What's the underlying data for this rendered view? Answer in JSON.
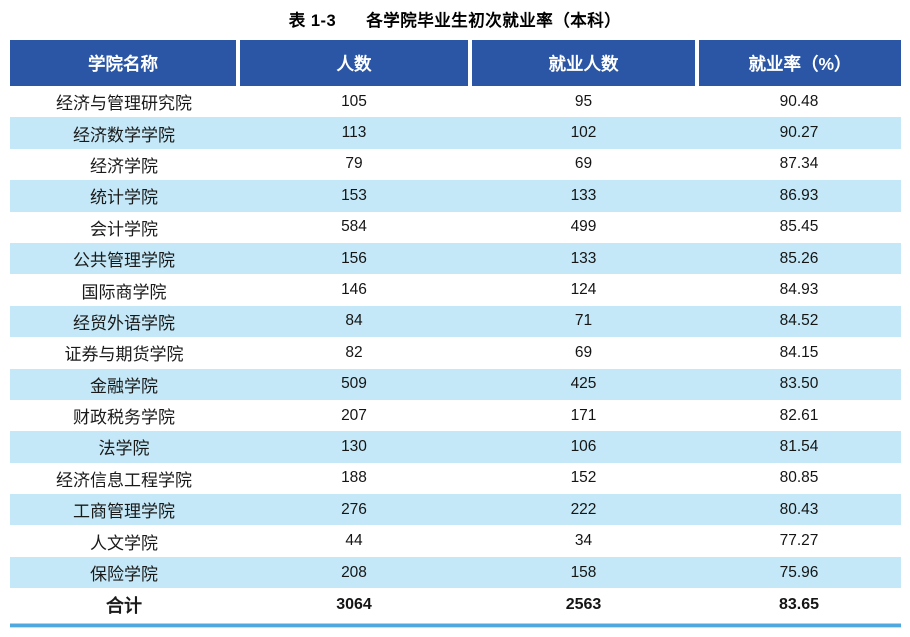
{
  "title": {
    "label": "表 1-3",
    "text": "各学院毕业生初次就业率（本科）"
  },
  "colors": {
    "header_bg": "#2A56A5",
    "stripe": "#C4E8F7",
    "bottom_rule": "#4FA9E0"
  },
  "table": {
    "headers": [
      "学院名称",
      "人数",
      "就业人数",
      "就业率（%）"
    ],
    "rows": [
      {
        "name": "经济与管理研究院",
        "count": "105",
        "employed": "95",
        "rate": "90.48"
      },
      {
        "name": "经济数学学院",
        "count": "113",
        "employed": "102",
        "rate": "90.27"
      },
      {
        "name": "经济学院",
        "count": "79",
        "employed": "69",
        "rate": "87.34"
      },
      {
        "name": "统计学院",
        "count": "153",
        "employed": "133",
        "rate": "86.93"
      },
      {
        "name": "会计学院",
        "count": "584",
        "employed": "499",
        "rate": "85.45"
      },
      {
        "name": "公共管理学院",
        "count": "156",
        "employed": "133",
        "rate": "85.26"
      },
      {
        "name": "国际商学院",
        "count": "146",
        "employed": "124",
        "rate": "84.93"
      },
      {
        "name": "经贸外语学院",
        "count": "84",
        "employed": "71",
        "rate": "84.52"
      },
      {
        "name": "证券与期货学院",
        "count": "82",
        "employed": "69",
        "rate": "84.15"
      },
      {
        "name": "金融学院",
        "count": "509",
        "employed": "425",
        "rate": "83.50"
      },
      {
        "name": "财政税务学院",
        "count": "207",
        "employed": "171",
        "rate": "82.61"
      },
      {
        "name": "法学院",
        "count": "130",
        "employed": "106",
        "rate": "81.54"
      },
      {
        "name": "经济信息工程学院",
        "count": "188",
        "employed": "152",
        "rate": "80.85"
      },
      {
        "name": "工商管理学院",
        "count": "276",
        "employed": "222",
        "rate": "80.43"
      },
      {
        "name": "人文学院",
        "count": "44",
        "employed": "34",
        "rate": "77.27"
      },
      {
        "name": "保险学院",
        "count": "208",
        "employed": "158",
        "rate": "75.96"
      }
    ],
    "total": {
      "name": "合计",
      "count": "3064",
      "employed": "2563",
      "rate": "83.65"
    }
  }
}
